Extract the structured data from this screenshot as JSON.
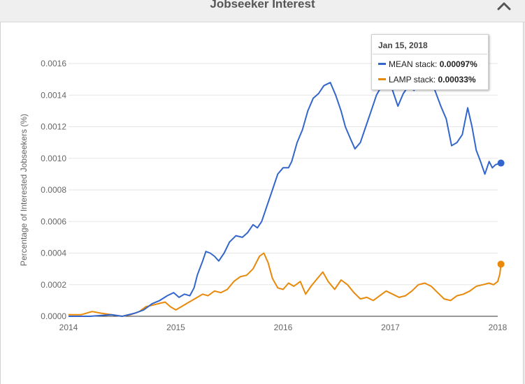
{
  "header": {
    "title": "Jobseeker Interest"
  },
  "tooltip": {
    "date": "Jan 15, 2018",
    "rows": [
      {
        "label": "MEAN stack:",
        "value": "0.00097%",
        "color": "#3366cc"
      },
      {
        "label": "LAMP stack:",
        "value": "0.00033%",
        "color": "#e8890a"
      }
    ]
  },
  "chart_data": {
    "type": "line",
    "title": "",
    "ylabel": "Percentage of Interested Jobseekers (%)",
    "xlabel": "",
    "xlim": [
      2014.0,
      2018.0
    ],
    "ylim": [
      0,
      0.0016
    ],
    "yticks": [
      "0.0000",
      "0.0002",
      "0.0004",
      "0.0006",
      "0.0008",
      "0.0010",
      "0.0012",
      "0.0014",
      "0.0016"
    ],
    "xticks": [
      "2014",
      "2015",
      "2016",
      "2017",
      "2018"
    ],
    "grid": true,
    "series": [
      {
        "name": "MEAN stack",
        "color": "#3366cc",
        "points": [
          [
            2014.0,
            0.0
          ],
          [
            2014.2,
            0.0
          ],
          [
            2014.4,
            1e-05
          ],
          [
            2014.5,
            0.0
          ],
          [
            2014.62,
            2e-05
          ],
          [
            2014.7,
            4e-05
          ],
          [
            2014.78,
            8e-05
          ],
          [
            2014.85,
            0.0001
          ],
          [
            2014.92,
            0.00013
          ],
          [
            2014.98,
            0.00015
          ],
          [
            2015.03,
            0.00012
          ],
          [
            2015.08,
            0.00014
          ],
          [
            2015.13,
            0.00013
          ],
          [
            2015.17,
            0.00018
          ],
          [
            2015.2,
            0.00026
          ],
          [
            2015.25,
            0.00035
          ],
          [
            2015.28,
            0.00041
          ],
          [
            2015.32,
            0.0004
          ],
          [
            2015.36,
            0.00038
          ],
          [
            2015.4,
            0.00035
          ],
          [
            2015.45,
            0.0004
          ],
          [
            2015.5,
            0.00047
          ],
          [
            2015.56,
            0.00051
          ],
          [
            2015.62,
            0.0005
          ],
          [
            2015.67,
            0.00053
          ],
          [
            2015.72,
            0.00058
          ],
          [
            2015.76,
            0.00056
          ],
          [
            2015.8,
            0.0006
          ],
          [
            2015.85,
            0.0007
          ],
          [
            2015.9,
            0.0008
          ],
          [
            2015.95,
            0.0009
          ],
          [
            2016.0,
            0.00094
          ],
          [
            2016.05,
            0.00094
          ],
          [
            2016.08,
            0.00098
          ],
          [
            2016.13,
            0.0011
          ],
          [
            2016.18,
            0.00118
          ],
          [
            2016.23,
            0.0013
          ],
          [
            2016.28,
            0.00138
          ],
          [
            2016.33,
            0.00141
          ],
          [
            2016.38,
            0.00146
          ],
          [
            2016.44,
            0.00148
          ],
          [
            2016.49,
            0.0014
          ],
          [
            2016.54,
            0.0013
          ],
          [
            2016.58,
            0.0012
          ],
          [
            2016.63,
            0.00112
          ],
          [
            2016.67,
            0.00106
          ],
          [
            2016.72,
            0.0011
          ],
          [
            2016.77,
            0.0012
          ],
          [
            2016.82,
            0.0013
          ],
          [
            2016.87,
            0.0014
          ],
          [
            2016.92,
            0.00146
          ],
          [
            2016.97,
            0.0015
          ],
          [
            2017.02,
            0.00143
          ],
          [
            2017.07,
            0.00133
          ],
          [
            2017.12,
            0.00141
          ],
          [
            2017.17,
            0.00146
          ],
          [
            2017.22,
            0.00143
          ],
          [
            2017.27,
            0.00149
          ],
          [
            2017.32,
            0.00148
          ],
          [
            2017.37,
            0.00151
          ],
          [
            2017.42,
            0.00142
          ],
          [
            2017.47,
            0.00133
          ],
          [
            2017.52,
            0.00125
          ],
          [
            2017.57,
            0.00108
          ],
          [
            2017.62,
            0.0011
          ],
          [
            2017.67,
            0.00115
          ],
          [
            2017.72,
            0.00132
          ],
          [
            2017.76,
            0.0012
          ],
          [
            2017.8,
            0.00105
          ],
          [
            2017.84,
            0.00098
          ],
          [
            2017.88,
            0.0009
          ],
          [
            2017.92,
            0.00098
          ],
          [
            2017.95,
            0.00094
          ],
          [
            2017.98,
            0.00096
          ],
          [
            2018.03,
            0.00097
          ]
        ]
      },
      {
        "name": "LAMP stack",
        "color": "#e8890a",
        "points": [
          [
            2014.0,
            1e-05
          ],
          [
            2014.12,
            1e-05
          ],
          [
            2014.22,
            3e-05
          ],
          [
            2014.3,
            2e-05
          ],
          [
            2014.4,
            1e-05
          ],
          [
            2014.5,
            0.0
          ],
          [
            2014.58,
            1e-05
          ],
          [
            2014.66,
            3e-05
          ],
          [
            2014.72,
            6e-05
          ],
          [
            2014.78,
            7e-05
          ],
          [
            2014.84,
            8e-05
          ],
          [
            2014.9,
            9e-05
          ],
          [
            2014.95,
            6e-05
          ],
          [
            2015.0,
            4e-05
          ],
          [
            2015.05,
            6e-05
          ],
          [
            2015.1,
            8e-05
          ],
          [
            2015.15,
            0.0001
          ],
          [
            2015.2,
            0.00012
          ],
          [
            2015.25,
            0.00014
          ],
          [
            2015.3,
            0.00013
          ],
          [
            2015.36,
            0.00016
          ],
          [
            2015.42,
            0.00015
          ],
          [
            2015.48,
            0.00017
          ],
          [
            2015.54,
            0.00022
          ],
          [
            2015.6,
            0.00025
          ],
          [
            2015.66,
            0.00026
          ],
          [
            2015.72,
            0.0003
          ],
          [
            2015.78,
            0.00038
          ],
          [
            2015.82,
            0.0004
          ],
          [
            2015.86,
            0.00034
          ],
          [
            2015.9,
            0.00024
          ],
          [
            2015.95,
            0.00018
          ],
          [
            2016.0,
            0.00017
          ],
          [
            2016.05,
            0.00021
          ],
          [
            2016.1,
            0.00019
          ],
          [
            2016.16,
            0.00022
          ],
          [
            2016.21,
            0.00014
          ],
          [
            2016.26,
            0.00019
          ],
          [
            2016.32,
            0.00024
          ],
          [
            2016.37,
            0.00028
          ],
          [
            2016.42,
            0.00022
          ],
          [
            2016.48,
            0.00017
          ],
          [
            2016.54,
            0.00023
          ],
          [
            2016.6,
            0.0002
          ],
          [
            2016.66,
            0.00015
          ],
          [
            2016.72,
            0.00011
          ],
          [
            2016.78,
            0.00012
          ],
          [
            2016.84,
            0.0001
          ],
          [
            2016.9,
            0.00013
          ],
          [
            2016.96,
            0.00016
          ],
          [
            2017.02,
            0.00014
          ],
          [
            2017.08,
            0.00012
          ],
          [
            2017.14,
            0.00013
          ],
          [
            2017.2,
            0.00016
          ],
          [
            2017.26,
            0.0002
          ],
          [
            2017.32,
            0.00021
          ],
          [
            2017.38,
            0.00019
          ],
          [
            2017.44,
            0.00015
          ],
          [
            2017.5,
            0.00011
          ],
          [
            2017.56,
            0.0001
          ],
          [
            2017.62,
            0.00013
          ],
          [
            2017.68,
            0.00014
          ],
          [
            2017.74,
            0.00016
          ],
          [
            2017.8,
            0.00019
          ],
          [
            2017.86,
            0.0002
          ],
          [
            2017.92,
            0.00021
          ],
          [
            2017.96,
            0.0002
          ],
          [
            2018.0,
            0.00022
          ],
          [
            2018.02,
            0.00027
          ],
          [
            2018.03,
            0.00033
          ]
        ]
      }
    ]
  }
}
